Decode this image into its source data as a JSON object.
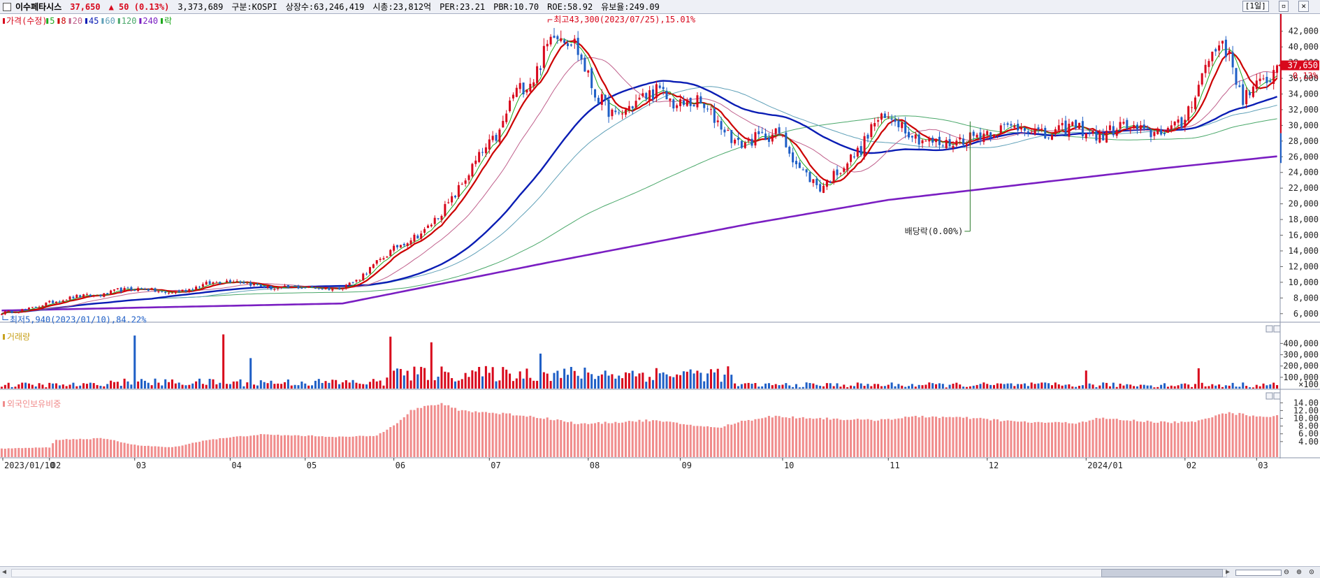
{
  "header": {
    "name": "이수페타시스",
    "price": "37,650",
    "change": "▲ 50 (0.13%)",
    "volume": "3,373,689",
    "market": "구분:KOSPI",
    "shares": "상장수:63,246,419",
    "marketcap": "시총:23,812억",
    "per": "PER:23.21",
    "pbr": "PBR:10.70",
    "roe": "ROE:58.92",
    "float": "유보율:249.09",
    "period_button": "[1일]"
  },
  "legend": {
    "price": "가격(수정)",
    "ma": [
      "5",
      "8",
      "20",
      "45",
      "60",
      "120",
      "240"
    ],
    "ex": "락"
  },
  "annotations": {
    "high": "최고43,300(2023/07/25),15.01%",
    "low": "최저5,940(2023/01/10),84.22%",
    "dividend": "배당락(0.00%)"
  },
  "price_tag": {
    "price": "37,650",
    "pct": "0.13%"
  },
  "panels": {
    "volume": "거래량",
    "foreign": "외국인보유비중"
  },
  "colors": {
    "up": "#d8081c",
    "down": "#1f5fc6",
    "ma5": "#1ea81e",
    "ma8": "#cc0000",
    "ma20": "#c0608c",
    "ma45": "#0a1db4",
    "ma60": "#5fa0b8",
    "ma120": "#4aa86a",
    "ma240": "#7a1ec2",
    "foreign": "#f08c8c"
  },
  "chart_data": [
    {
      "type": "candlestick",
      "title": "이수페타시스",
      "x_ticks": [
        "2023/01/10",
        "02",
        "03",
        "04",
        "05",
        "06",
        "07",
        "08",
        "09",
        "10",
        "11",
        "12",
        "2024/01",
        "02",
        "03"
      ],
      "ylim": [
        5000,
        44200
      ],
      "y_ticks": [
        6000,
        8000,
        10000,
        12000,
        14000,
        16000,
        18000,
        20000,
        22000,
        24000,
        26000,
        28000,
        30000,
        32000,
        34000,
        36000,
        38000,
        40000,
        42000
      ],
      "y_tick_labels": [
        "6,000",
        "8,000",
        "10,000",
        "12,000",
        "14,000",
        "16,000",
        "18,000",
        "20,000",
        "22,000",
        "24,000",
        "26,000",
        "28,000",
        "30,000",
        "32,000",
        "34,000",
        "36,000",
        "38,000",
        "40,000",
        "42,000"
      ],
      "n_bars": 292,
      "anchors": [
        [
          0,
          6100
        ],
        [
          8,
          6600
        ],
        [
          14,
          7400
        ],
        [
          22,
          8200
        ],
        [
          30,
          8400
        ],
        [
          34,
          9000
        ],
        [
          42,
          9200
        ],
        [
          48,
          8600
        ],
        [
          54,
          9000
        ],
        [
          60,
          9800
        ],
        [
          68,
          10300
        ],
        [
          74,
          9700
        ],
        [
          80,
          9200
        ],
        [
          86,
          9400
        ],
        [
          92,
          9300
        ],
        [
          98,
          9200
        ],
        [
          104,
          10200
        ],
        [
          110,
          12500
        ],
        [
          116,
          14600
        ],
        [
          124,
          16500
        ],
        [
          132,
          20500
        ],
        [
          140,
          26000
        ],
        [
          146,
          29000
        ],
        [
          150,
          34000
        ],
        [
          156,
          36000
        ],
        [
          162,
          42200
        ],
        [
          168,
          40500
        ],
        [
          174,
          34000
        ],
        [
          180,
          31000
        ],
        [
          186,
          33000
        ],
        [
          192,
          34500
        ],
        [
          198,
          32500
        ],
        [
          204,
          33000
        ],
        [
          210,
          30500
        ],
        [
          216,
          27500
        ],
        [
          222,
          28500
        ],
        [
          228,
          29000
        ],
        [
          234,
          24500
        ],
        [
          240,
          22000
        ],
        [
          246,
          24500
        ],
        [
          252,
          27000
        ],
        [
          256,
          30500
        ],
        [
          262,
          31000
        ],
        [
          268,
          28500
        ],
        [
          276,
          27500
        ],
        [
          284,
          28500
        ],
        [
          292,
          29500
        ],
        [
          300,
          30000
        ],
        [
          306,
          28500
        ],
        [
          314,
          30000
        ],
        [
          322,
          28500
        ],
        [
          328,
          30000
        ],
        [
          336,
          29000
        ],
        [
          346,
          30000
        ],
        [
          354,
          38500
        ],
        [
          358,
          41000
        ],
        [
          364,
          33500
        ],
        [
          370,
          35500
        ],
        [
          375,
          37650
        ]
      ],
      "last_price": 37650,
      "high": {
        "value": 43300,
        "date": "2023/07/25",
        "pct": "15.01%"
      },
      "low": {
        "value": 5940,
        "date": "2023/01/10",
        "pct": "84.22%"
      },
      "moving_averages": [
        "5",
        "8",
        "20",
        "45",
        "60",
        "120",
        "240"
      ],
      "ma240": [
        [
          0,
          6400
        ],
        [
          100,
          7300
        ],
        [
          160,
          12500
        ],
        [
          220,
          17500
        ],
        [
          260,
          20500
        ],
        [
          300,
          22500
        ],
        [
          340,
          24500
        ],
        [
          375,
          26100
        ]
      ]
    },
    {
      "type": "bar",
      "title": "거래량",
      "unit": "×100",
      "ylim": [
        0,
        520000
      ],
      "y_ticks": [
        100000,
        200000,
        300000,
        400000
      ],
      "y_tick_labels": [
        "100,000",
        "200,000",
        "300,000",
        "400,000"
      ],
      "spikes": [
        [
          40,
          470000
        ],
        [
          66,
          480000
        ],
        [
          74,
          270000
        ],
        [
          116,
          460000
        ],
        [
          128,
          410000
        ],
        [
          160,
          310000
        ],
        [
          322,
          160000
        ],
        [
          356,
          180000
        ]
      ]
    },
    {
      "type": "bar",
      "title": "외국인보유비중",
      "ylim": [
        0,
        15.5
      ],
      "y_ticks": [
        4,
        6,
        8,
        10,
        12,
        14
      ],
      "y_tick_labels": [
        "4.00",
        "6.00",
        "8.00",
        "10.00",
        "12.00",
        "14.00"
      ],
      "anchors": [
        [
          0,
          2.2
        ],
        [
          14,
          2.5
        ],
        [
          16,
          4.5
        ],
        [
          30,
          4.8
        ],
        [
          40,
          3.0
        ],
        [
          50,
          2.5
        ],
        [
          60,
          4.4
        ],
        [
          75,
          5.8
        ],
        [
          90,
          5.5
        ],
        [
          100,
          5.2
        ],
        [
          110,
          5.5
        ],
        [
          116,
          9.0
        ],
        [
          120,
          12.0
        ],
        [
          128,
          13.8
        ],
        [
          135,
          12.0
        ],
        [
          150,
          11.0
        ],
        [
          160,
          10.0
        ],
        [
          170,
          8.5
        ],
        [
          180,
          9.0
        ],
        [
          190,
          9.5
        ],
        [
          200,
          8.5
        ],
        [
          210,
          7.5
        ],
        [
          216,
          9.0
        ],
        [
          225,
          10.5
        ],
        [
          240,
          10.0
        ],
        [
          255,
          9.5
        ],
        [
          270,
          10.5
        ],
        [
          285,
          10.0
        ],
        [
          300,
          9.0
        ],
        [
          315,
          8.8
        ],
        [
          322,
          10.0
        ],
        [
          330,
          9.5
        ],
        [
          340,
          9.0
        ],
        [
          350,
          9.0
        ],
        [
          358,
          11.5
        ],
        [
          364,
          11.0
        ],
        [
          370,
          10.5
        ],
        [
          375,
          10.5
        ]
      ]
    }
  ]
}
